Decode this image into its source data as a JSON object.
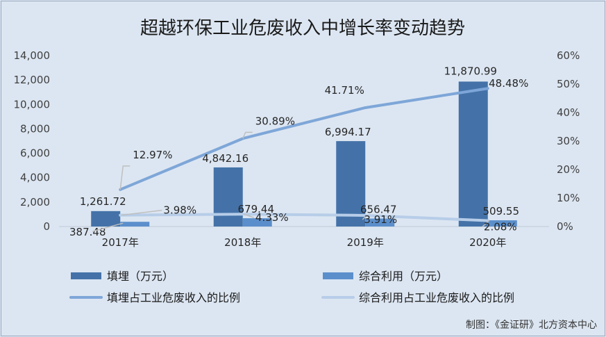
{
  "chart_data": {
    "type": "bar",
    "title": "超越环保工业危废收入中增长率变动趋势",
    "categories": [
      "2017年",
      "2018年",
      "2019年",
      "2020年"
    ],
    "y_left": {
      "ylim": [
        0,
        14000
      ],
      "ticks": [
        "0",
        "2,000",
        "4,000",
        "6,000",
        "8,000",
        "10,000",
        "12,000",
        "14,000"
      ]
    },
    "y_right": {
      "ylim": [
        0,
        60
      ],
      "ticks": [
        "0%",
        "10%",
        "20%",
        "30%",
        "40%",
        "50%",
        "60%"
      ]
    },
    "series": [
      {
        "name": "填埋（万元）",
        "type": "bar",
        "axis": "left",
        "color": "#4472a8",
        "values": [
          1261.72,
          4842.16,
          6994.17,
          11870.99
        ],
        "labels": [
          "1,261.72",
          "4,842.16",
          "6,994.17",
          "11,870.99"
        ]
      },
      {
        "name": "综合利用（万元）",
        "type": "bar",
        "axis": "left",
        "color": "#5b8fcc",
        "values": [
          387.48,
          679.44,
          656.47,
          509.55
        ],
        "labels": [
          "387.48",
          "679.44",
          "656.47",
          "509.55"
        ]
      },
      {
        "name": "填埋占工业危废收入的比例",
        "type": "line",
        "axis": "right",
        "color": "#7ea6d8",
        "values": [
          12.97,
          30.89,
          41.71,
          48.48
        ],
        "labels": [
          "12.97%",
          "30.89%",
          "41.71%",
          "48.48%"
        ]
      },
      {
        "name": "综合利用占工业危废收入的比例",
        "type": "line",
        "axis": "right",
        "color": "#b7cde8",
        "values": [
          3.98,
          4.33,
          3.91,
          2.08
        ],
        "labels": [
          "3.98%",
          "4.33%",
          "3.91%",
          "2.08%"
        ]
      }
    ],
    "legend_position": "bottom",
    "grid": false
  },
  "source_note": "制图：《金证研》北方资本中心"
}
